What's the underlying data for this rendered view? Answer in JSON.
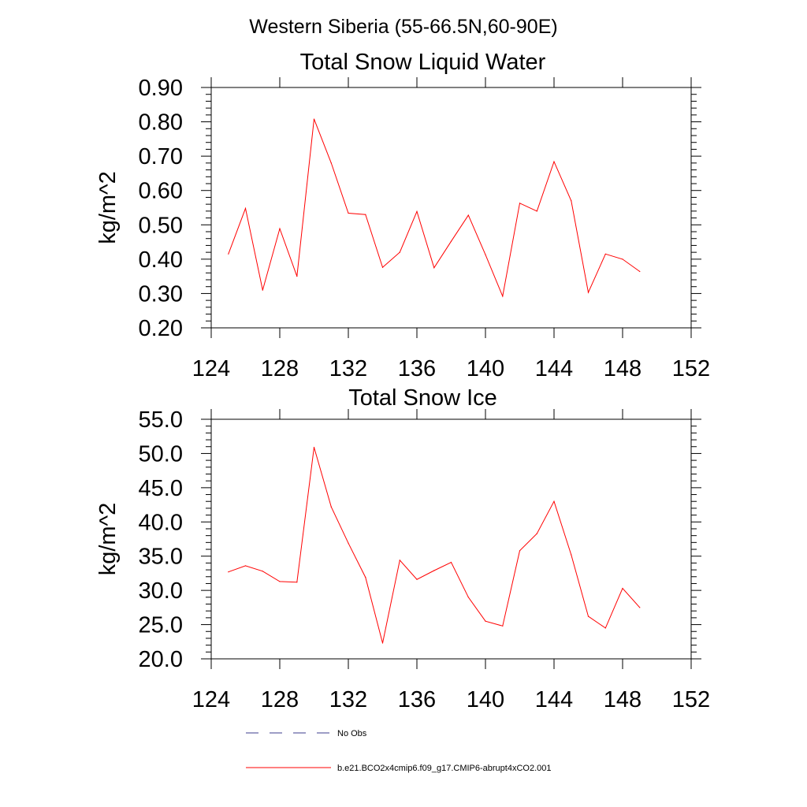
{
  "figure": {
    "suptitle": "Western Siberia (55-66.5N,60-90E)"
  },
  "chart_data": [
    {
      "type": "line",
      "title": "Total Snow Liquid Water",
      "xlabel": "",
      "ylabel": "kg/m^2",
      "xlim": [
        124,
        152
      ],
      "ylim": [
        0.2,
        0.9
      ],
      "xticks": [
        124,
        128,
        132,
        136,
        140,
        144,
        148,
        152
      ],
      "yticks": [
        0.2,
        0.3,
        0.4,
        0.5,
        0.6,
        0.7,
        0.8,
        0.9
      ],
      "ytick_labels": [
        "0.20",
        "0.30",
        "0.40",
        "0.50",
        "0.60",
        "0.70",
        "0.80",
        "0.90"
      ],
      "series": [
        {
          "name": "b.e21.BCO2x4cmip6.f09_g17.CMIP6-abrupt4xCO2.001",
          "color": "#ff0000",
          "x": [
            125,
            126,
            127,
            128,
            129,
            130,
            131,
            132,
            133,
            134,
            135,
            136,
            137,
            138,
            139,
            140,
            141,
            142,
            143,
            144,
            145,
            146,
            147,
            148,
            149
          ],
          "values": [
            0.415,
            0.548,
            0.31,
            0.489,
            0.35,
            0.808,
            0.68,
            0.534,
            0.53,
            0.376,
            0.42,
            0.539,
            0.375,
            0.452,
            0.528,
            0.413,
            0.292,
            0.563,
            0.54,
            0.684,
            0.57,
            0.303,
            0.415,
            0.4,
            0.364
          ]
        }
      ]
    },
    {
      "type": "line",
      "title": "Total Snow Ice",
      "xlabel": "",
      "ylabel": "kg/m^2",
      "xlim": [
        124,
        152
      ],
      "ylim": [
        20,
        55
      ],
      "xticks": [
        124,
        128,
        132,
        136,
        140,
        144,
        148,
        152
      ],
      "yticks": [
        20,
        25,
        30,
        35,
        40,
        45,
        50,
        55
      ],
      "ytick_labels": [
        "20.0",
        "25.0",
        "30.0",
        "35.0",
        "40.0",
        "45.0",
        "50.0",
        "55.0"
      ],
      "series": [
        {
          "name": "b.e21.BCO2x4cmip6.f09_g17.CMIP6-abrupt4xCO2.001",
          "color": "#ff0000",
          "x": [
            125,
            126,
            127,
            128,
            129,
            130,
            131,
            132,
            133,
            134,
            135,
            136,
            137,
            138,
            139,
            140,
            141,
            142,
            143,
            144,
            145,
            146,
            147,
            148,
            149
          ],
          "values": [
            32.7,
            33.6,
            32.8,
            31.3,
            31.2,
            50.9,
            42.2,
            36.9,
            31.9,
            22.3,
            34.4,
            31.6,
            32.9,
            34.1,
            29.0,
            25.5,
            24.8,
            35.8,
            38.3,
            43.0,
            35.2,
            26.2,
            24.5,
            30.3,
            27.5
          ]
        }
      ]
    }
  ],
  "legend": [
    {
      "label": "No Obs",
      "style": "dashed",
      "color": "#3c3c8c"
    },
    {
      "label": "b.e21.BCO2x4cmip6.f09_g17.CMIP6-abrupt4xCO2.001",
      "style": "solid",
      "color": "#ff0000"
    }
  ]
}
